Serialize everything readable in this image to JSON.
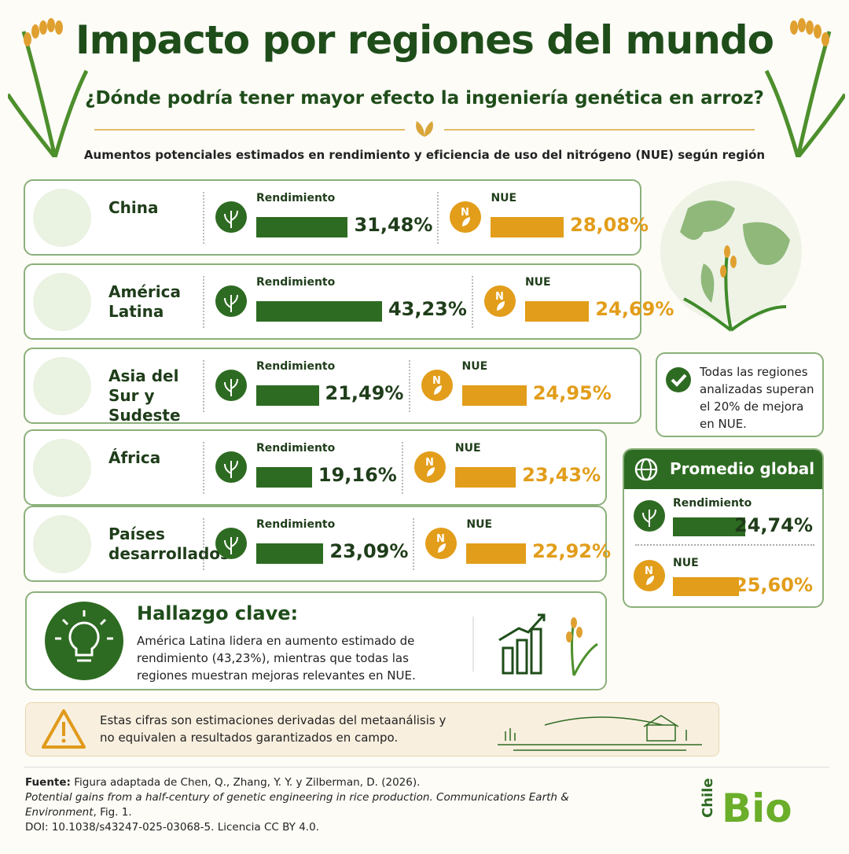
{
  "chart_data": {
    "type": "bar",
    "title": "Impacto por regiones del mundo",
    "subtitle": "¿Dónde podría tener mayor efecto la ingeniería genética en arroz?",
    "caption": "Aumentos potenciales estimados en rendimiento y eficiencia de uso del nitrógeno (NUE) según región",
    "categories": [
      "China",
      "América Latina",
      "Asia del Sur y Sudeste",
      "África",
      "Países desarrollados"
    ],
    "series": [
      {
        "name": "Rendimiento",
        "color": "#2e6b22",
        "values": [
          31.48,
          43.23,
          21.49,
          19.16,
          23.09
        ],
        "value_labels": [
          "31,48%",
          "43,23%",
          "21,49%",
          "19,16%",
          "23,09%"
        ]
      },
      {
        "name": "NUE",
        "color": "#e29d1a",
        "values": [
          28.08,
          24.69,
          24.95,
          23.43,
          22.92
        ],
        "value_labels": [
          "28,08%",
          "24,69%",
          "24,95%",
          "23,43%",
          "22,92%"
        ]
      }
    ],
    "note": "Todas las regiones analizadas superan el 20% de mejora en NUE.",
    "average": {
      "title": "Promedio global",
      "values": [
        24.74,
        25.6
      ],
      "value_labels": [
        "24,74%",
        "25,60%"
      ]
    },
    "key_finding": {
      "title": "Hallazgo clave:",
      "text": "América Latina lidera en aumento estimado de rendimiento (43,23%), mientras que todas las regiones muestran mejoras relevantes en NUE."
    },
    "warning": "Estas cifras son estimaciones derivadas del metaanálisis y no equivalen a resultados garantizados en campo.",
    "source": {
      "label": "Fuente:",
      "text": "Figura adaptada de Chen, Q., Zhang, Y. Y. y Zilberman, D. (2026).",
      "article": "Potential gains from a half-century of genetic engineering in rice production. Communications Earth & Environment",
      "figure": ", Fig. 1.",
      "doi": "DOI: 10.1038/s43247-025-03068-5. Licencia CC BY 4.0."
    },
    "logo": [
      "Chile",
      "Bio"
    ]
  }
}
